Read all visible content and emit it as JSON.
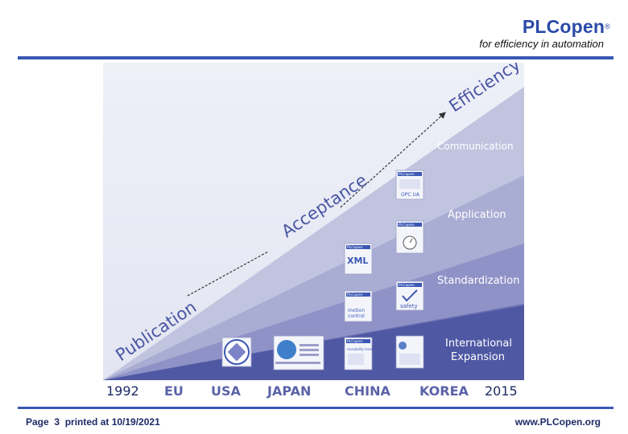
{
  "header": {
    "brand": "PLCopen",
    "registered": "®",
    "tagline": "for efficiency in automation"
  },
  "figure": {
    "diagonal_labels": [
      "Publication",
      "Acceptance",
      "Efficiency"
    ],
    "layer_labels": {
      "communication": "Communication",
      "application": "Application",
      "standardization": "Standardization",
      "international_line1": "International",
      "international_line2": "Expansion"
    },
    "timeline": [
      "1992",
      "EU",
      "USA",
      "JAPAN",
      "CHINA",
      "KOREA",
      "2015"
    ],
    "logos": {
      "xml": "XML",
      "motion_1": "motion",
      "motion_2": "control",
      "safety": "safety",
      "opc_ua": "OPC UA",
      "reusability": "reusability level",
      "brand_small": "PLCopen"
    },
    "colors": {
      "layer_top": "#bfc2de",
      "layer_2": "#a7aad2",
      "layer_3": "#8e91c5",
      "layer_4": "#6f72b4",
      "layer_bottom": "#4b54a0",
      "band_bg": "#ffffff"
    }
  },
  "footer": {
    "page_text": "Page  3  printed at 10/19/2021",
    "url": "www.PLCopen.org"
  }
}
